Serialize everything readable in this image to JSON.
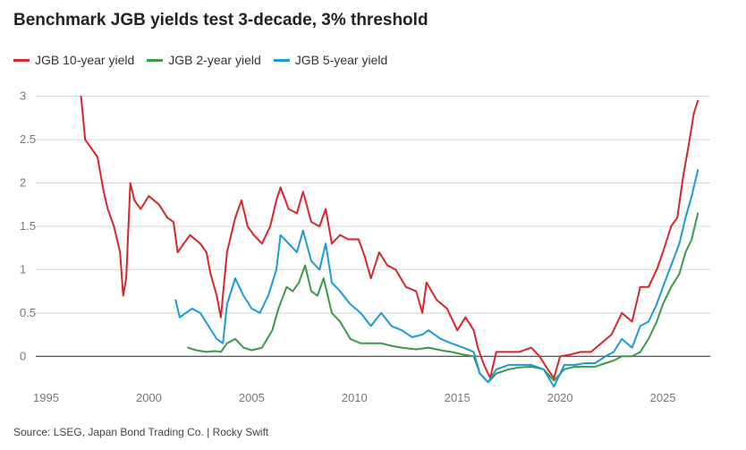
{
  "colors": {
    "ten": "#d7262b",
    "two": "#3a9a46",
    "five": "#1c9ad6"
  },
  "chart_data": {
    "type": "line",
    "title": "Benchmark JGB yields test 3-decade, 3% threshold",
    "xlim": [
      1994.5,
      2027.3
    ],
    "ylim": [
      -0.4,
      3.1
    ],
    "xticks": [
      1995,
      2000,
      2005,
      2010,
      2015,
      2020,
      2025
    ],
    "yticks": [
      0,
      0.5,
      1,
      1.5,
      2,
      2.5,
      3
    ],
    "grid": true,
    "legend_position": "top-left",
    "series": [
      {
        "name": "JGB 10-year yield",
        "color_key": "ten",
        "points": [
          [
            1996.7,
            3.0
          ],
          [
            1996.9,
            2.5
          ],
          [
            1997.2,
            2.4
          ],
          [
            1997.5,
            2.3
          ],
          [
            1997.8,
            1.9
          ],
          [
            1998.0,
            1.7
          ],
          [
            1998.3,
            1.5
          ],
          [
            1998.6,
            1.2
          ],
          [
            1998.75,
            0.7
          ],
          [
            1998.9,
            0.9
          ],
          [
            1999.1,
            2.0
          ],
          [
            1999.3,
            1.8
          ],
          [
            1999.6,
            1.7
          ],
          [
            2000.0,
            1.85
          ],
          [
            2000.5,
            1.75
          ],
          [
            2000.9,
            1.6
          ],
          [
            2001.2,
            1.55
          ],
          [
            2001.4,
            1.2
          ],
          [
            2001.7,
            1.3
          ],
          [
            2002.0,
            1.4
          ],
          [
            2002.5,
            1.3
          ],
          [
            2002.8,
            1.2
          ],
          [
            2003.0,
            0.95
          ],
          [
            2003.3,
            0.7
          ],
          [
            2003.5,
            0.45
          ],
          [
            2003.8,
            1.2
          ],
          [
            2004.2,
            1.6
          ],
          [
            2004.5,
            1.8
          ],
          [
            2004.8,
            1.5
          ],
          [
            2005.1,
            1.4
          ],
          [
            2005.5,
            1.3
          ],
          [
            2005.9,
            1.5
          ],
          [
            2006.2,
            1.8
          ],
          [
            2006.4,
            1.95
          ],
          [
            2006.8,
            1.7
          ],
          [
            2007.2,
            1.65
          ],
          [
            2007.5,
            1.9
          ],
          [
            2007.9,
            1.55
          ],
          [
            2008.3,
            1.5
          ],
          [
            2008.6,
            1.7
          ],
          [
            2008.9,
            1.3
          ],
          [
            2009.3,
            1.4
          ],
          [
            2009.7,
            1.35
          ],
          [
            2010.2,
            1.35
          ],
          [
            2010.5,
            1.15
          ],
          [
            2010.8,
            0.9
          ],
          [
            2011.2,
            1.2
          ],
          [
            2011.6,
            1.05
          ],
          [
            2012.0,
            1.0
          ],
          [
            2012.5,
            0.8
          ],
          [
            2013.0,
            0.75
          ],
          [
            2013.3,
            0.5
          ],
          [
            2013.5,
            0.85
          ],
          [
            2014.0,
            0.65
          ],
          [
            2014.5,
            0.55
          ],
          [
            2015.0,
            0.3
          ],
          [
            2015.4,
            0.45
          ],
          [
            2015.8,
            0.3
          ],
          [
            2016.0,
            0.1
          ],
          [
            2016.3,
            -0.1
          ],
          [
            2016.6,
            -0.25
          ],
          [
            2016.9,
            0.05
          ],
          [
            2017.5,
            0.05
          ],
          [
            2018.0,
            0.05
          ],
          [
            2018.6,
            0.1
          ],
          [
            2019.0,
            0.0
          ],
          [
            2019.4,
            -0.15
          ],
          [
            2019.7,
            -0.25
          ],
          [
            2020.0,
            0.0
          ],
          [
            2020.5,
            0.02
          ],
          [
            2021.0,
            0.05
          ],
          [
            2021.5,
            0.05
          ],
          [
            2022.0,
            0.15
          ],
          [
            2022.5,
            0.25
          ],
          [
            2023.0,
            0.5
          ],
          [
            2023.5,
            0.4
          ],
          [
            2023.9,
            0.8
          ],
          [
            2024.3,
            0.8
          ],
          [
            2024.7,
            1.0
          ],
          [
            2025.0,
            1.2
          ],
          [
            2025.4,
            1.5
          ],
          [
            2025.7,
            1.6
          ],
          [
            2026.0,
            2.1
          ],
          [
            2026.3,
            2.5
          ],
          [
            2026.5,
            2.8
          ],
          [
            2026.7,
            2.95
          ]
        ]
      },
      {
        "name": "JGB 2-year yield",
        "color_key": "two",
        "points": [
          [
            2001.9,
            0.1
          ],
          [
            2002.3,
            0.07
          ],
          [
            2002.8,
            0.05
          ],
          [
            2003.2,
            0.06
          ],
          [
            2003.5,
            0.05
          ],
          [
            2003.8,
            0.15
          ],
          [
            2004.2,
            0.2
          ],
          [
            2004.6,
            0.1
          ],
          [
            2005.0,
            0.07
          ],
          [
            2005.5,
            0.1
          ],
          [
            2006.0,
            0.3
          ],
          [
            2006.3,
            0.55
          ],
          [
            2006.7,
            0.8
          ],
          [
            2007.0,
            0.75
          ],
          [
            2007.3,
            0.85
          ],
          [
            2007.6,
            1.05
          ],
          [
            2007.9,
            0.75
          ],
          [
            2008.2,
            0.7
          ],
          [
            2008.5,
            0.9
          ],
          [
            2008.9,
            0.5
          ],
          [
            2009.3,
            0.4
          ],
          [
            2009.8,
            0.2
          ],
          [
            2010.3,
            0.15
          ],
          [
            2010.8,
            0.15
          ],
          [
            2011.3,
            0.15
          ],
          [
            2011.8,
            0.12
          ],
          [
            2012.3,
            0.1
          ],
          [
            2013.0,
            0.08
          ],
          [
            2013.6,
            0.1
          ],
          [
            2014.2,
            0.07
          ],
          [
            2014.7,
            0.05
          ],
          [
            2015.3,
            0.02
          ],
          [
            2015.8,
            0.0
          ],
          [
            2016.1,
            -0.2
          ],
          [
            2016.5,
            -0.3
          ],
          [
            2016.9,
            -0.2
          ],
          [
            2017.5,
            -0.15
          ],
          [
            2018.0,
            -0.13
          ],
          [
            2018.6,
            -0.12
          ],
          [
            2019.2,
            -0.15
          ],
          [
            2019.7,
            -0.28
          ],
          [
            2020.2,
            -0.15
          ],
          [
            2020.7,
            -0.12
          ],
          [
            2021.2,
            -0.12
          ],
          [
            2021.7,
            -0.12
          ],
          [
            2022.2,
            -0.08
          ],
          [
            2022.6,
            -0.05
          ],
          [
            2023.0,
            0.0
          ],
          [
            2023.5,
            0.0
          ],
          [
            2023.9,
            0.05
          ],
          [
            2024.3,
            0.2
          ],
          [
            2024.7,
            0.4
          ],
          [
            2025.0,
            0.6
          ],
          [
            2025.4,
            0.8
          ],
          [
            2025.8,
            0.95
          ],
          [
            2026.1,
            1.2
          ],
          [
            2026.4,
            1.35
          ],
          [
            2026.7,
            1.65
          ]
        ]
      },
      {
        "name": "JGB 5-year yield",
        "color_key": "five",
        "points": [
          [
            2001.3,
            0.65
          ],
          [
            2001.5,
            0.45
          ],
          [
            2001.8,
            0.5
          ],
          [
            2002.1,
            0.55
          ],
          [
            2002.5,
            0.5
          ],
          [
            2002.9,
            0.35
          ],
          [
            2003.3,
            0.2
          ],
          [
            2003.6,
            0.15
          ],
          [
            2003.8,
            0.6
          ],
          [
            2004.2,
            0.9
          ],
          [
            2004.6,
            0.7
          ],
          [
            2005.0,
            0.55
          ],
          [
            2005.4,
            0.5
          ],
          [
            2005.8,
            0.7
          ],
          [
            2006.2,
            1.0
          ],
          [
            2006.4,
            1.4
          ],
          [
            2006.8,
            1.3
          ],
          [
            2007.2,
            1.2
          ],
          [
            2007.5,
            1.45
          ],
          [
            2007.9,
            1.1
          ],
          [
            2008.3,
            1.0
          ],
          [
            2008.6,
            1.3
          ],
          [
            2008.9,
            0.85
          ],
          [
            2009.3,
            0.75
          ],
          [
            2009.8,
            0.6
          ],
          [
            2010.3,
            0.5
          ],
          [
            2010.8,
            0.35
          ],
          [
            2011.3,
            0.5
          ],
          [
            2011.8,
            0.35
          ],
          [
            2012.3,
            0.3
          ],
          [
            2012.8,
            0.22
          ],
          [
            2013.3,
            0.25
          ],
          [
            2013.6,
            0.3
          ],
          [
            2014.2,
            0.2
          ],
          [
            2014.7,
            0.15
          ],
          [
            2015.3,
            0.1
          ],
          [
            2015.8,
            0.05
          ],
          [
            2016.1,
            -0.2
          ],
          [
            2016.5,
            -0.3
          ],
          [
            2016.9,
            -0.15
          ],
          [
            2017.5,
            -0.1
          ],
          [
            2018.0,
            -0.1
          ],
          [
            2018.6,
            -0.1
          ],
          [
            2019.2,
            -0.15
          ],
          [
            2019.7,
            -0.35
          ],
          [
            2020.2,
            -0.1
          ],
          [
            2020.7,
            -0.1
          ],
          [
            2021.2,
            -0.08
          ],
          [
            2021.7,
            -0.08
          ],
          [
            2022.2,
            0.0
          ],
          [
            2022.6,
            0.05
          ],
          [
            2023.0,
            0.2
          ],
          [
            2023.5,
            0.1
          ],
          [
            2023.9,
            0.35
          ],
          [
            2024.3,
            0.4
          ],
          [
            2024.7,
            0.6
          ],
          [
            2025.0,
            0.8
          ],
          [
            2025.4,
            1.05
          ],
          [
            2025.8,
            1.3
          ],
          [
            2026.1,
            1.6
          ],
          [
            2026.4,
            1.85
          ],
          [
            2026.7,
            2.15
          ]
        ]
      }
    ]
  },
  "source_text": "Source: LSEG, Japan Bond Trading Co. | Rocky Swift"
}
